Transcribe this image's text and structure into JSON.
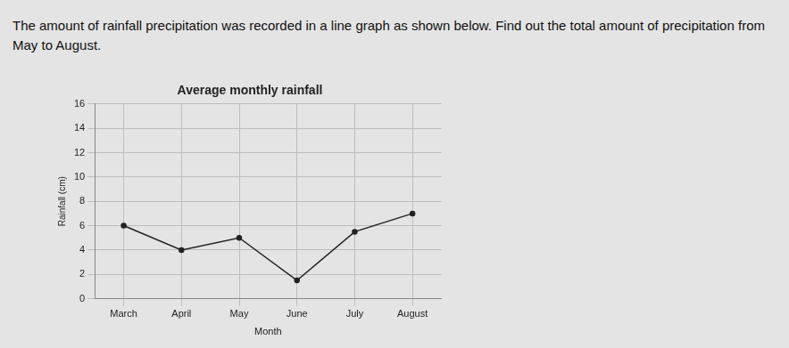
{
  "question": "The amount of rainfall precipitation was recorded in a line graph as shown below. Find out the total amount of precipitation from May to August.",
  "chart_data": {
    "type": "line",
    "title": "Average monthly rainfall",
    "x_label": "Month",
    "y_label": "Rainfall (cm)",
    "categories": [
      "March",
      "April",
      "May",
      "June",
      "July",
      "August"
    ],
    "values": [
      6,
      4,
      5,
      1.5,
      5.5,
      7
    ],
    "color": "#222222",
    "marker": "circle",
    "ylim": [
      0,
      16
    ],
    "yticks": [
      0,
      2,
      4,
      6,
      8,
      10,
      12,
      14,
      16
    ],
    "grid": true
  }
}
